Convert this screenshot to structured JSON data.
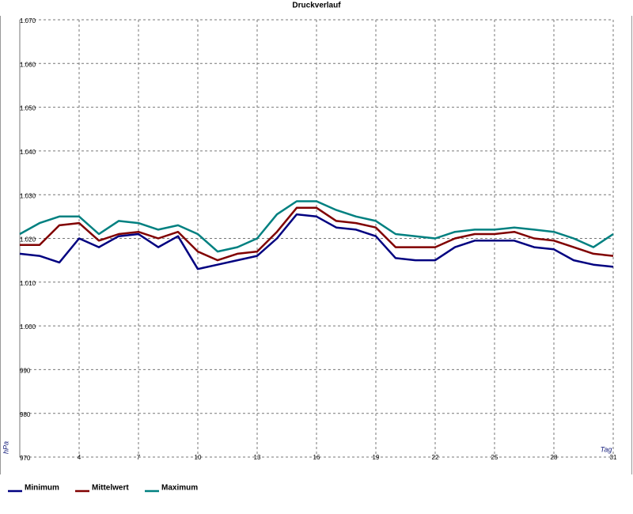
{
  "chart_data": {
    "type": "line",
    "title": "Druckverlauf",
    "y_label": "hPa",
    "x_label": "Tag",
    "x": [
      1,
      2,
      3,
      4,
      5,
      6,
      7,
      8,
      9,
      10,
      11,
      12,
      13,
      14,
      15,
      16,
      17,
      18,
      19,
      20,
      21,
      22,
      23,
      24,
      25,
      26,
      27,
      28,
      29,
      30,
      31
    ],
    "xlim": [
      1,
      31
    ],
    "xticks": [
      4,
      7,
      10,
      13,
      16,
      19,
      22,
      25,
      28,
      31
    ],
    "ylim": [
      970,
      1070
    ],
    "yticks": [
      970,
      980,
      990,
      {
        "value": 1000,
        "label": "1.000"
      },
      {
        "value": 1010,
        "label": "1.010"
      },
      {
        "value": 1020,
        "label": "1.020"
      },
      {
        "value": 1030,
        "label": "1.030"
      },
      {
        "value": 1040,
        "label": "1.040"
      },
      {
        "value": 1050,
        "label": "1.050"
      },
      {
        "value": 1060,
        "label": "1.060"
      },
      {
        "value": 1070,
        "label": "1.070"
      }
    ],
    "grid": true,
    "series": [
      {
        "name": "Minimum",
        "color": "#000080",
        "values": [
          1016.5,
          1016,
          1014.5,
          1020,
          1018,
          1020.5,
          1021,
          1018,
          1020.5,
          1013,
          1014,
          1015,
          1016,
          1020,
          1025.5,
          1025,
          1022.5,
          1022,
          1020.5,
          1015.5,
          1015,
          1015,
          1018,
          1019.5,
          1019.5,
          1019.5,
          1018,
          1017.5,
          1015,
          1014,
          1013.5
        ]
      },
      {
        "name": "Mittelwert",
        "color": "#800000",
        "values": [
          1018.5,
          1018.5,
          1023,
          1023.5,
          1019.5,
          1021,
          1021.5,
          1020,
          1021.5,
          1017,
          1015,
          1016.5,
          1017,
          1021.5,
          1027,
          1027,
          1024,
          1023.5,
          1022.5,
          1018,
          1018,
          1018,
          1020,
          1021,
          1021,
          1021.5,
          1020,
          1019.5,
          1018,
          1016.5,
          1016
        ]
      },
      {
        "name": "Maximum",
        "color": "#008080",
        "values": [
          1021,
          1023.5,
          1025,
          1025,
          1021,
          1024,
          1023.5,
          1022,
          1023,
          1021,
          1017,
          1018,
          1020,
          1025.5,
          1028.5,
          1028.5,
          1026.5,
          1025,
          1024,
          1021,
          1020.5,
          1020,
          1021.5,
          1022,
          1022,
          1022.5,
          1022,
          1021.5,
          1020,
          1018,
          1021
        ]
      }
    ]
  }
}
